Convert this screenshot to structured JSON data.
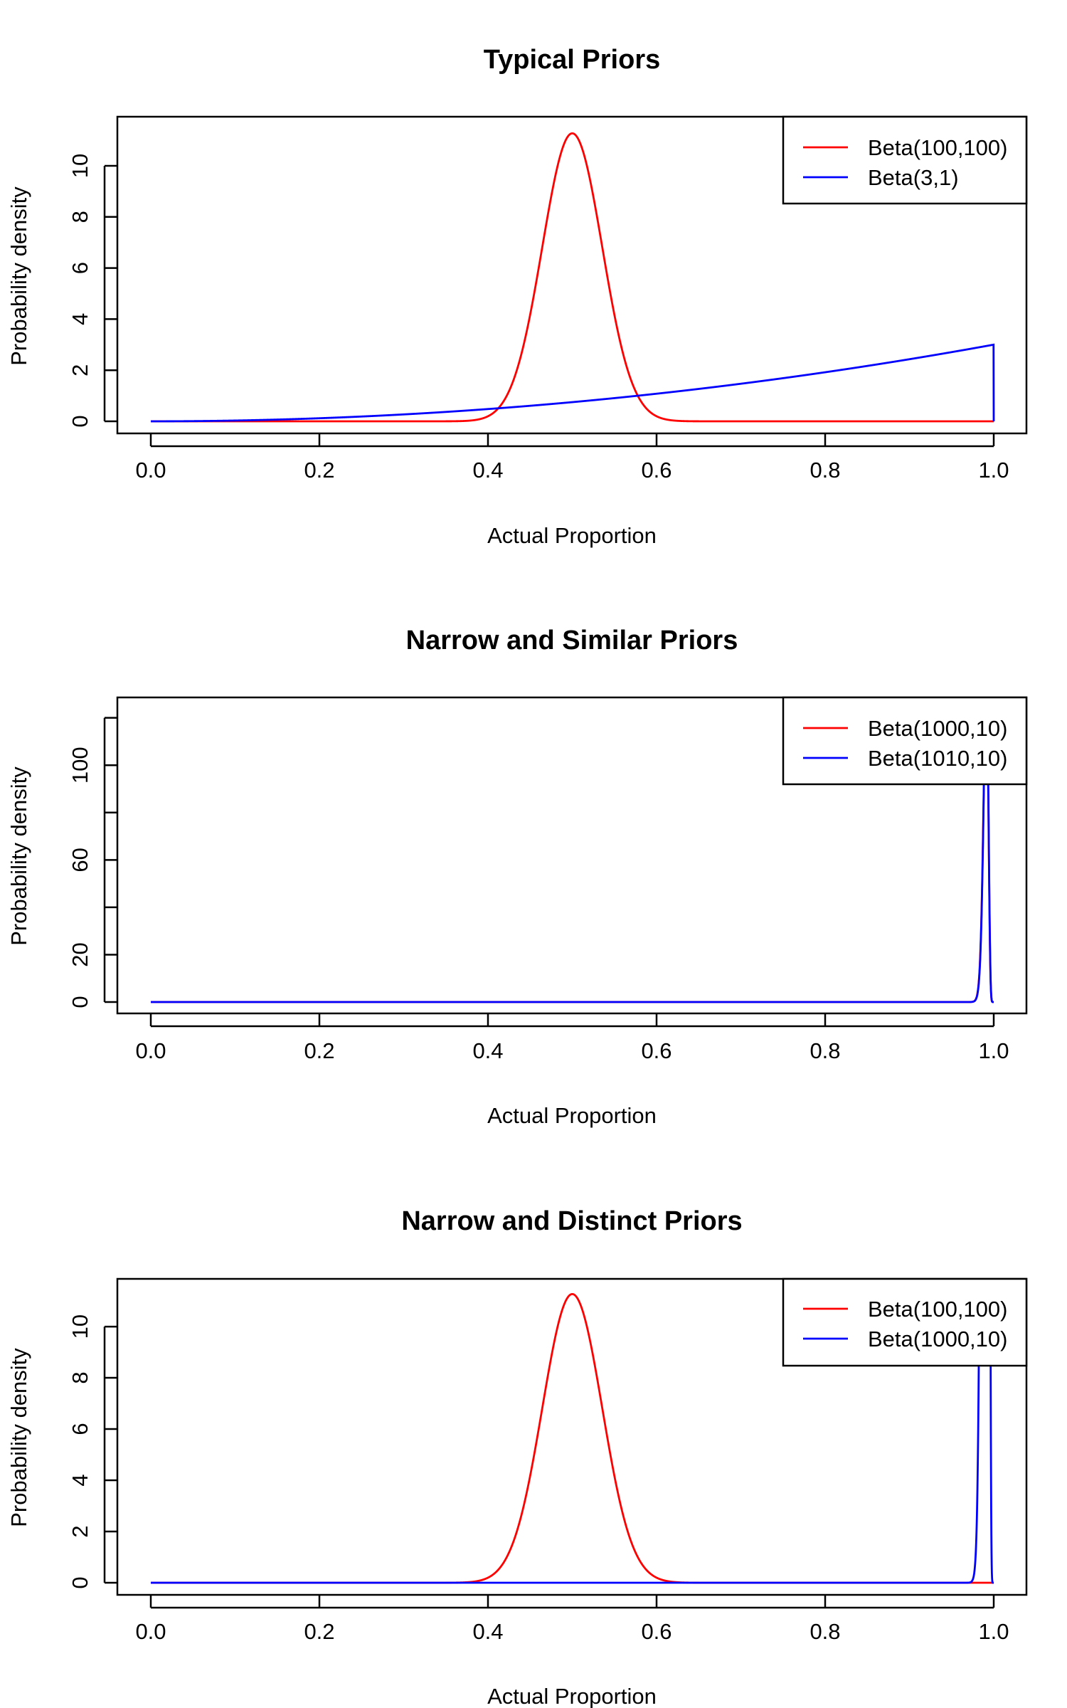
{
  "chart_data": [
    {
      "type": "line",
      "title": "Typical Priors",
      "xlabel": "Actual Proportion",
      "ylabel": "Probability density",
      "xlim": [
        0,
        1
      ],
      "ylim": [
        0,
        11.28
      ],
      "xticks": [
        "0.0",
        "0.2",
        "0.4",
        "0.6",
        "0.8",
        "1.0"
      ],
      "yticks": [
        "0",
        "2",
        "4",
        "6",
        "8",
        "10"
      ],
      "legend_position": "top-right",
      "series": [
        {
          "name": "Beta(100,100)",
          "color": "#ff0000",
          "alpha": 100,
          "beta": 100
        },
        {
          "name": "Beta(3,1)",
          "color": "#0000ff",
          "alpha": 3,
          "beta": 1
        }
      ]
    },
    {
      "type": "line",
      "title": "Narrow and Similar Priors",
      "xlabel": "Actual Proportion",
      "ylabel": "Probability density",
      "xlim": [
        0,
        1
      ],
      "ylim": [
        0,
        122
      ],
      "xticks": [
        "0.0",
        "0.2",
        "0.4",
        "0.6",
        "0.8",
        "1.0"
      ],
      "yticks": [
        "0",
        "20",
        "",
        "60",
        "",
        "100",
        ""
      ],
      "legend_position": "top-right",
      "series": [
        {
          "name": "Beta(1000,10)",
          "color": "#ff0000",
          "alpha": 1000,
          "beta": 10
        },
        {
          "name": "Beta(1010,10)",
          "color": "#0000ff",
          "alpha": 1010,
          "beta": 10
        }
      ]
    },
    {
      "type": "line",
      "title": "Narrow and Distinct Priors",
      "xlabel": "Actual Proportion",
      "ylabel": "Probability density",
      "xlim": [
        0,
        1
      ],
      "ylim": [
        0,
        11.28
      ],
      "xticks": [
        "0.0",
        "0.2",
        "0.4",
        "0.6",
        "0.8",
        "1.0"
      ],
      "yticks": [
        "0",
        "2",
        "4",
        "6",
        "8",
        "10"
      ],
      "legend_position": "top-right",
      "series": [
        {
          "name": "Beta(100,100)",
          "color": "#ff0000",
          "alpha": 100,
          "beta": 100
        },
        {
          "name": "Beta(1000,10)",
          "color": "#0000ff",
          "alpha": 1000,
          "beta": 10
        }
      ]
    }
  ]
}
